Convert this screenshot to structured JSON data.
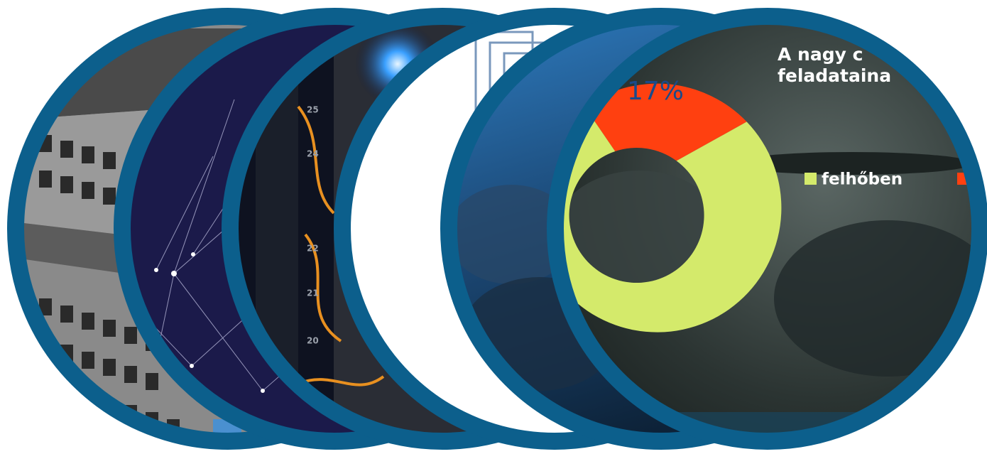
{
  "slide": {
    "title_line_1": "A nagy c",
    "title_line_2": "feladataina",
    "percent_label": "17%",
    "legend_label": "felhőben"
  }
}
